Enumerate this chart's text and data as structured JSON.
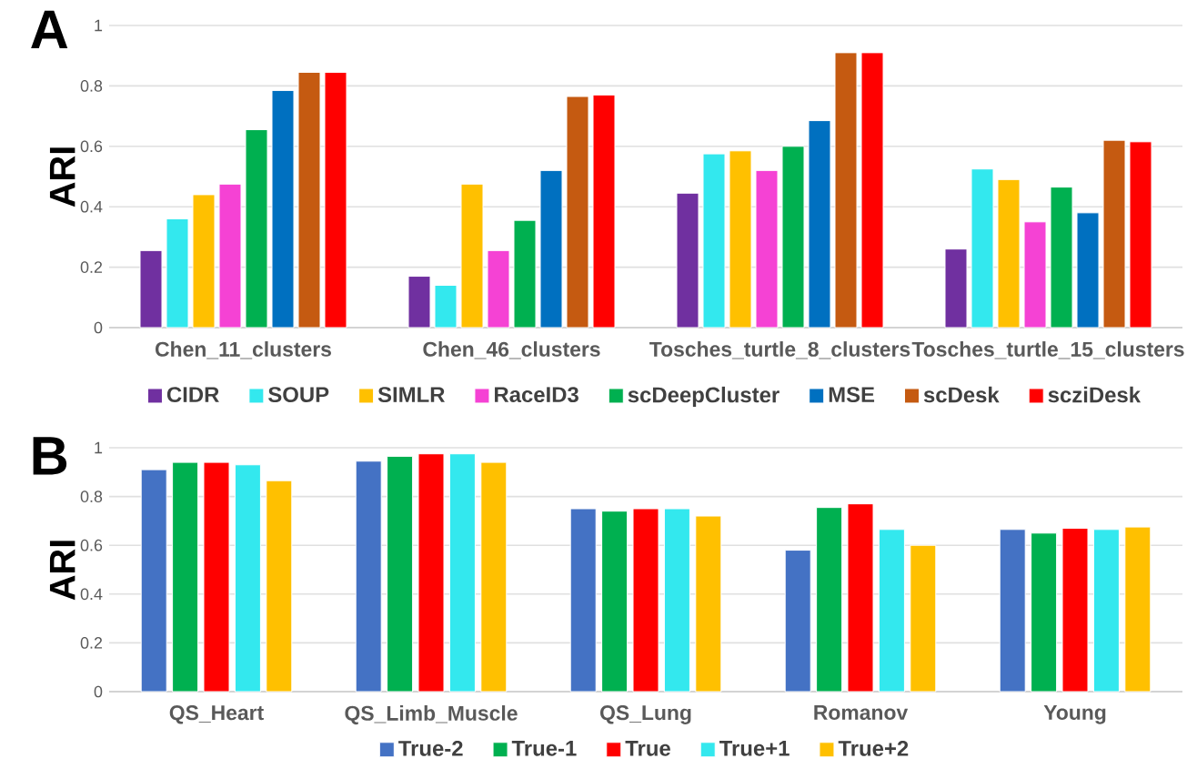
{
  "chart_data": [
    {
      "type": "bar",
      "annotations": [
        "A"
      ],
      "ylabel": "ARI",
      "categories": [
        "Chen_11_clusters",
        "Chen_46_clusters",
        "Tosches_turtle_8_clusters",
        "Tosches_turtle_15_clusters"
      ],
      "series": [
        {
          "name": "CIDR",
          "color": "#7030a0",
          "values": [
            0.255,
            0.17,
            0.445,
            0.26
          ]
        },
        {
          "name": "SOUP",
          "color": "#33e8ee",
          "values": [
            0.36,
            0.14,
            0.575,
            0.525
          ]
        },
        {
          "name": "SIMLR",
          "color": "#ffc000",
          "values": [
            0.44,
            0.475,
            0.585,
            0.49
          ]
        },
        {
          "name": "RaceID3",
          "color": "#f542d4",
          "values": [
            0.475,
            0.255,
            0.52,
            0.35
          ]
        },
        {
          "name": "scDeepCluster",
          "color": "#00b050",
          "values": [
            0.655,
            0.355,
            0.6,
            0.465
          ]
        },
        {
          "name": "MSE",
          "color": "#0070c0",
          "values": [
            0.785,
            0.52,
            0.685,
            0.38
          ]
        },
        {
          "name": "scDesk",
          "color": "#c55a11",
          "values": [
            0.845,
            0.765,
            0.91,
            0.62
          ]
        },
        {
          "name": "scziDesk",
          "color": "#ff0000",
          "values": [
            0.845,
            0.77,
            0.91,
            0.615
          ]
        }
      ],
      "ylim": [
        0,
        1
      ],
      "yticks": [
        0,
        0.2,
        0.4,
        0.6,
        0.8,
        1
      ],
      "grid": "y",
      "legend": "bottom"
    },
    {
      "type": "bar",
      "annotations": [
        "B"
      ],
      "ylabel": "ARI",
      "categories": [
        "QS_Heart",
        "QS_Limb_Muscle",
        "QS_Lung",
        "Romanov",
        "Young"
      ],
      "series": [
        {
          "name": "True-2",
          "color": "#4472c4",
          "values": [
            0.91,
            0.945,
            0.75,
            0.58,
            0.665
          ]
        },
        {
          "name": "True-1",
          "color": "#00b050",
          "values": [
            0.94,
            0.965,
            0.74,
            0.755,
            0.65
          ]
        },
        {
          "name": "True",
          "color": "#ff0000",
          "values": [
            0.94,
            0.975,
            0.75,
            0.77,
            0.67
          ]
        },
        {
          "name": "True+1",
          "color": "#33e8ee",
          "values": [
            0.93,
            0.975,
            0.75,
            0.665,
            0.665
          ]
        },
        {
          "name": "True+2",
          "color": "#ffc000",
          "values": [
            0.865,
            0.94,
            0.72,
            0.6,
            0.675
          ]
        }
      ],
      "ylim": [
        0,
        1
      ],
      "yticks": [
        0,
        0.2,
        0.4,
        0.6,
        0.8,
        1
      ],
      "grid": "y",
      "legend": "bottom"
    }
  ]
}
